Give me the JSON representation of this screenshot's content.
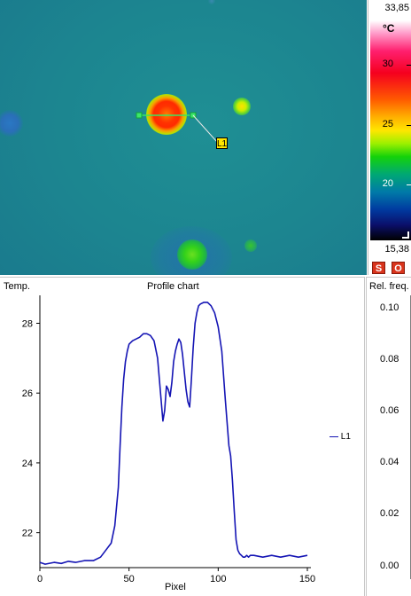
{
  "scale": {
    "max": "33,85",
    "min": "15,38",
    "unit": "°C",
    "ticks": [
      "30",
      "25",
      "20"
    ],
    "icon": "corner-resize-icon"
  },
  "thermal": {
    "line_label": "L1"
  },
  "buttons": {
    "s_label": "S",
    "o_label": "O"
  },
  "profile": {
    "title": "Profile chart",
    "ylabel": "Temp.",
    "xlabel": "Pixel",
    "legend": "L1"
  },
  "freq": {
    "title": "Rel. freq.",
    "ticks": [
      "0.10",
      "0.08",
      "0.06",
      "0.04",
      "0.02",
      "0.00"
    ]
  },
  "chart_data": {
    "type": "line",
    "title": "Profile chart",
    "xlabel": "Pixel",
    "ylabel": "Temp.",
    "xlim": [
      0,
      150
    ],
    "ylim": [
      21,
      28.8
    ],
    "xticks": [
      0,
      50,
      100,
      150
    ],
    "yticks": [
      22,
      24,
      26,
      28
    ],
    "legend": "right",
    "series": [
      {
        "name": "L1",
        "color": "#1414b4",
        "x": [
          0,
          3,
          8,
          12,
          16,
          20,
          25,
          30,
          34,
          37,
          40,
          42,
          44,
          45,
          46,
          47,
          48,
          49,
          50,
          52,
          54,
          56,
          58,
          60,
          62,
          64,
          66,
          68,
          69,
          70,
          71,
          72,
          73,
          74,
          75,
          76,
          77,
          78,
          79,
          80,
          81,
          82,
          83,
          84,
          85,
          86,
          87,
          88,
          89,
          90,
          92,
          94,
          96,
          98,
          100,
          102,
          104,
          106,
          107,
          108,
          109,
          110,
          111,
          112,
          113,
          114,
          115,
          116,
          117,
          118,
          120,
          125,
          130,
          135,
          140,
          145,
          150
        ],
        "y": [
          21.15,
          21.1,
          21.15,
          21.12,
          21.18,
          21.15,
          21.2,
          21.2,
          21.3,
          21.5,
          21.7,
          22.2,
          23.3,
          24.5,
          25.6,
          26.4,
          26.9,
          27.2,
          27.4,
          27.5,
          27.55,
          27.6,
          27.7,
          27.7,
          27.65,
          27.5,
          27.0,
          25.8,
          25.2,
          25.5,
          26.2,
          26.1,
          25.9,
          26.3,
          26.9,
          27.2,
          27.4,
          27.55,
          27.45,
          27.1,
          26.6,
          26.1,
          25.75,
          25.6,
          26.4,
          27.3,
          28.0,
          28.3,
          28.5,
          28.55,
          28.6,
          28.6,
          28.5,
          28.3,
          27.9,
          27.2,
          25.8,
          24.5,
          24.2,
          23.5,
          22.6,
          21.8,
          21.5,
          21.4,
          21.35,
          21.3,
          21.3,
          21.35,
          21.3,
          21.35,
          21.35,
          21.3,
          21.35,
          21.3,
          21.35,
          21.3,
          21.35
        ]
      }
    ]
  }
}
